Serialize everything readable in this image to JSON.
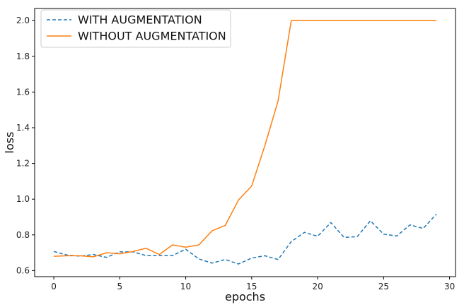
{
  "chart_data": {
    "type": "line",
    "title": "",
    "xlabel": "epochs",
    "ylabel": "loss",
    "xlim": [
      -1.45,
      30.45
    ],
    "ylim": [
      0.566,
      2.068
    ],
    "xticks": [
      0,
      5,
      10,
      15,
      20,
      25,
      30
    ],
    "xtick_labels": [
      "0",
      "5",
      "10",
      "15",
      "20",
      "25",
      "30"
    ],
    "yticks": [
      0.6,
      0.8,
      1.0,
      1.2,
      1.4,
      1.6,
      1.8,
      2.0
    ],
    "ytick_labels": [
      "0.6",
      "0.8",
      "1.0",
      "1.2",
      "1.4",
      "1.6",
      "1.8",
      "2.0"
    ],
    "grid": false,
    "legend_position": "top-left",
    "x": [
      0,
      1,
      2,
      3,
      4,
      5,
      6,
      7,
      8,
      9,
      10,
      11,
      12,
      13,
      14,
      15,
      16,
      17,
      18,
      19,
      20,
      21,
      22,
      23,
      24,
      25,
      26,
      27,
      28,
      29
    ],
    "series": [
      {
        "name": "WITH AUGMENTATION",
        "color": "#1f77b4",
        "style": "dashed",
        "values": [
          0.707,
          0.687,
          0.681,
          0.69,
          0.674,
          0.705,
          0.705,
          0.684,
          0.684,
          0.684,
          0.72,
          0.665,
          0.642,
          0.662,
          0.637,
          0.67,
          0.683,
          0.662,
          0.762,
          0.814,
          0.792,
          0.869,
          0.786,
          0.79,
          0.879,
          0.804,
          0.794,
          0.856,
          0.836,
          0.916
        ]
      },
      {
        "name": "WITHOUT AUGMENTATION",
        "color": "#ff7f0e",
        "style": "solid",
        "values": [
          0.68,
          0.683,
          0.683,
          0.677,
          0.7,
          0.694,
          0.707,
          0.725,
          0.69,
          0.744,
          0.731,
          0.744,
          0.823,
          0.853,
          0.995,
          1.074,
          1.3,
          1.55,
          2.0,
          2.0,
          2.0,
          2.0,
          2.0,
          2.0,
          2.0,
          2.0,
          2.0,
          2.0,
          2.0,
          2.0
        ]
      }
    ]
  }
}
